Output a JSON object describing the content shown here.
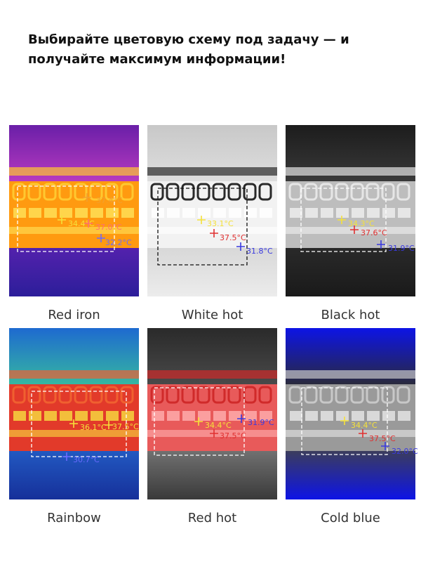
{
  "heading": {
    "lines": [
      "Выбирайте цветовую схему под задачу — и",
      "получайте максимум информации!"
    ]
  },
  "panels": [
    {
      "label": "Red iron",
      "readings": [
        "37.4°C",
        "34.4°C",
        "37.0°C",
        "32.2°C"
      ]
    },
    {
      "label": "White hot",
      "readings": [
        "33.1°C",
        "37.5°C",
        "31.8°C"
      ]
    },
    {
      "label": "Black hot",
      "readings": [
        "34.3°C",
        "37.6°C",
        "31.9°C"
      ]
    },
    {
      "label": "Rainbow",
      "readings": [
        "36.1°C",
        "37.5°C",
        "30.7°C"
      ]
    },
    {
      "label": "Red hot",
      "readings": [
        "34.4°C",
        "37.5°C",
        "31.9°C"
      ]
    },
    {
      "label": "Cold blue",
      "readings": [
        "34.4°C",
        "37.5°C",
        "32.0°C"
      ]
    }
  ]
}
